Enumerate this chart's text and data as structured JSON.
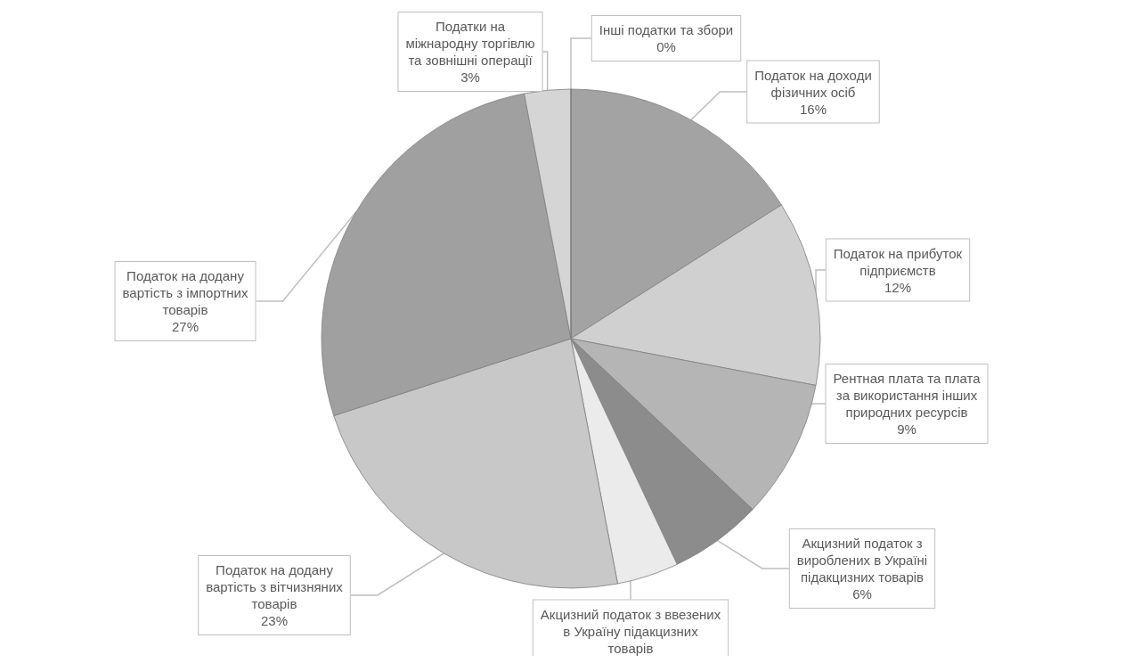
{
  "chart_data": {
    "type": "pie",
    "categories": [
      "Податок на доходи фізичних осіб",
      "Податок на прибуток підприємств",
      "Рентная плата та плата за використання інших природних ресурсів",
      "Акцизний податок з вироблених в Україні підакцизних товарів",
      "Акцизний податок з ввезених в Україну підакцизних товарів",
      "Податок на додану вартість з вітчизняних товарів",
      "Податок на додану вартість з імпортних товарів",
      "Податки на міжнародну торгівлю та зовнішні операції",
      "Інші податки та збори"
    ],
    "values": [
      16,
      12,
      9,
      6,
      4,
      23,
      27,
      3,
      0
    ],
    "value_labels": [
      "16%",
      "12%",
      "9%",
      "6%",
      null,
      "23%",
      "27%",
      "3%",
      "0%"
    ],
    "colors": [
      "#a3a3a3",
      "#d0d0d0",
      "#b5b5b5",
      "#8c8c8c",
      "#ebebeb",
      "#c8c8c8",
      "#a0a0a0",
      "#d5d5d5",
      "#999999"
    ],
    "legend": false
  }
}
